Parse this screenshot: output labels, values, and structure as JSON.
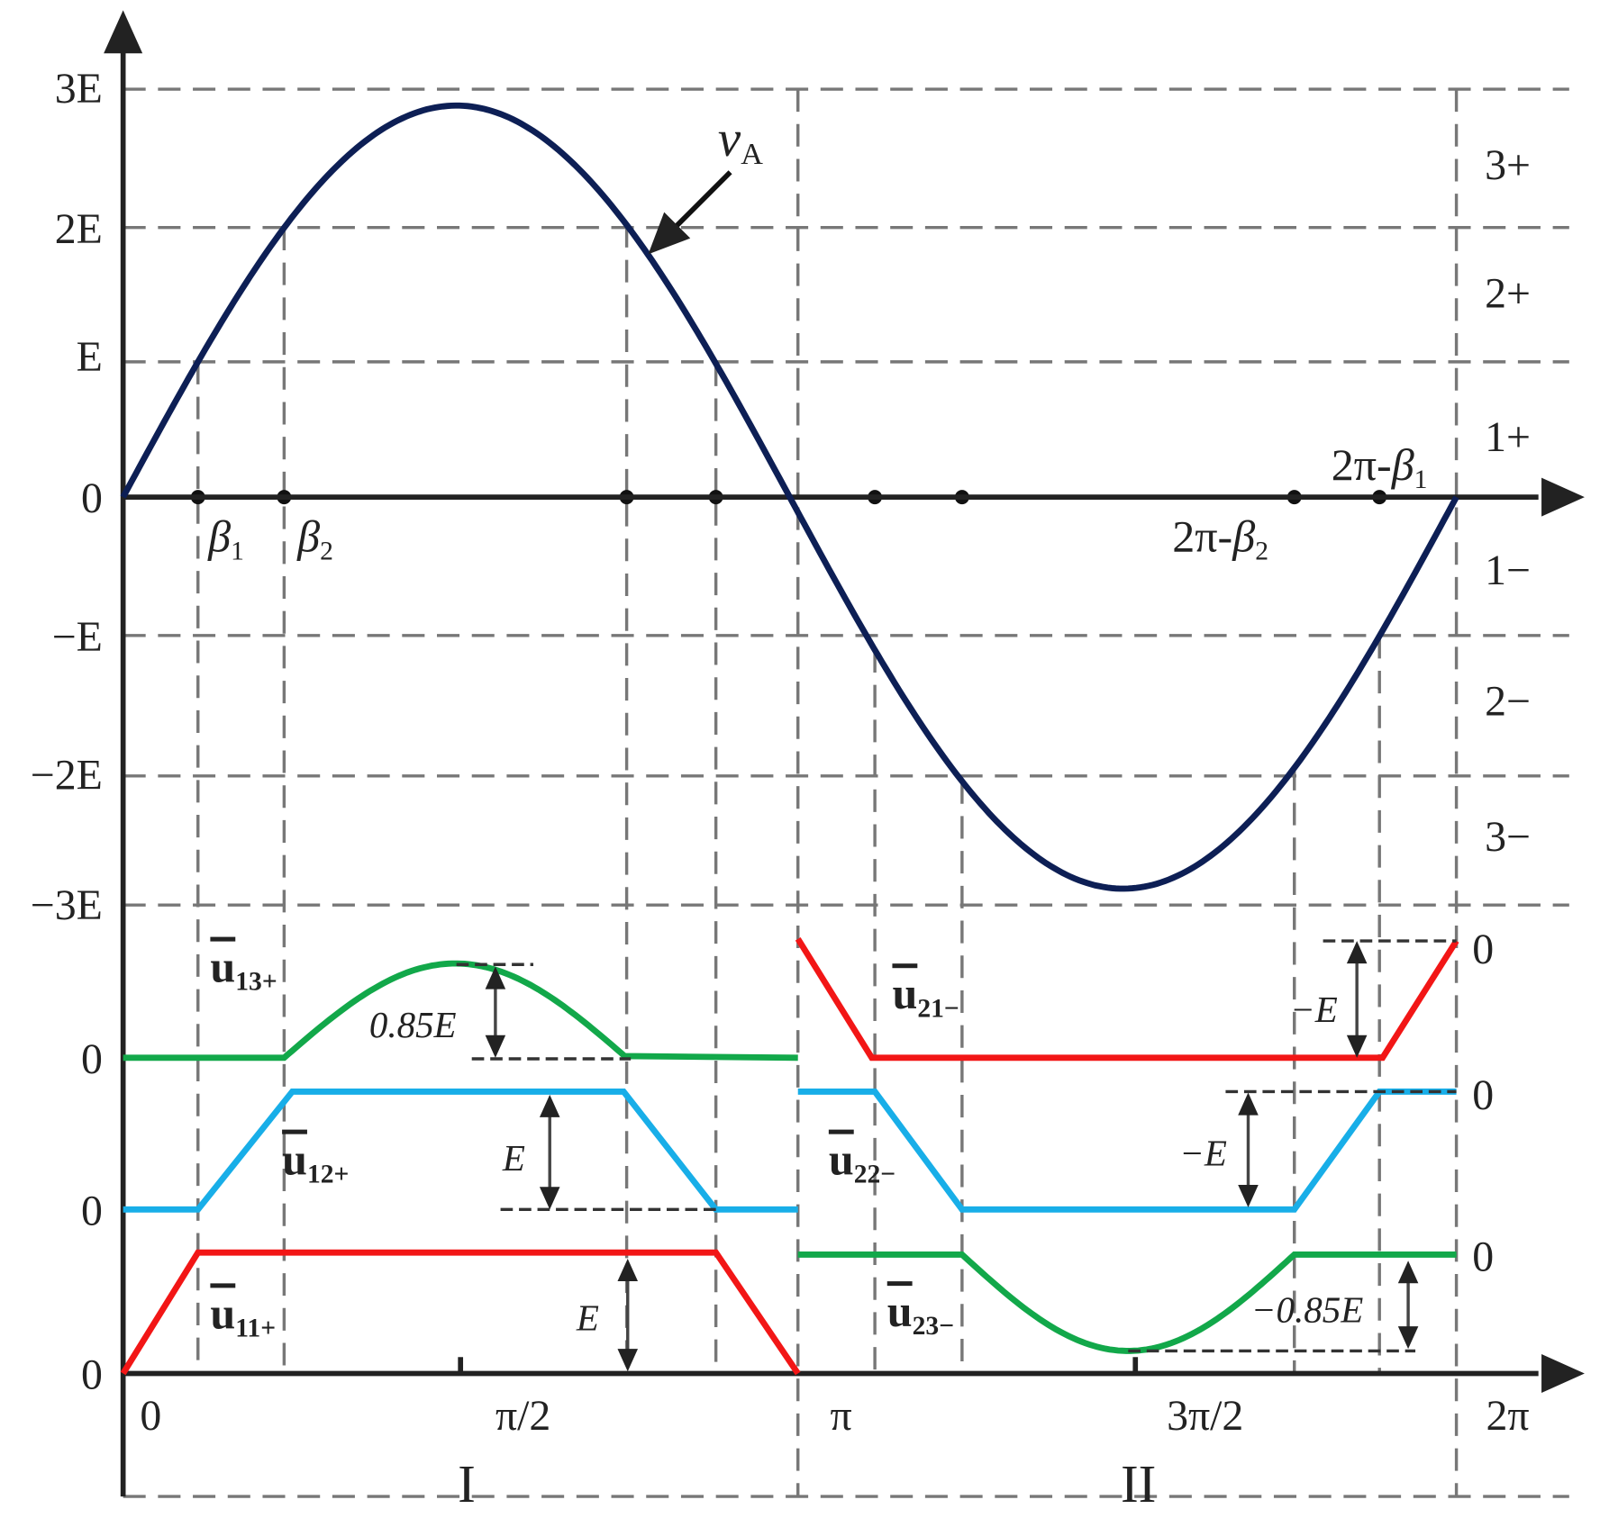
{
  "y_axis_labels": [
    "3E",
    "2E",
    "E",
    "0",
    "−E",
    "−2E",
    "−3E"
  ],
  "level_labels": [
    "3+",
    "2+",
    "1+",
    "1−",
    "2−",
    "3−"
  ],
  "angle_labels": [
    {
      "prefix": "",
      "symbol": "β",
      "sub": "1"
    },
    {
      "prefix": "",
      "symbol": "β",
      "sub": "2"
    },
    {
      "prefix": "2π-",
      "symbol": "β",
      "sub": "2"
    },
    {
      "prefix": "2π-",
      "symbol": "β",
      "sub": "1"
    }
  ],
  "curve_label": {
    "symbol": "v",
    "sub": "A"
  },
  "waveforms": [
    {
      "symbol": "u",
      "sub": "13+"
    },
    {
      "symbol": "u",
      "sub": "12+"
    },
    {
      "symbol": "u",
      "sub": "11+"
    },
    {
      "symbol": "u",
      "sub": "21−"
    },
    {
      "symbol": "u",
      "sub": "22−"
    },
    {
      "symbol": "u",
      "sub": "23−"
    }
  ],
  "zero_labels_left": [
    "0",
    "0",
    "0"
  ],
  "zero_labels_right": [
    "0",
    "0",
    "0"
  ],
  "amplitude_labels": [
    "0.85E",
    "E",
    "E",
    "−E",
    "−E",
    "−0.85E"
  ],
  "x_axis_labels": [
    "0",
    "π/2",
    "π",
    "3π/2",
    "2π"
  ],
  "regions": [
    "I",
    "II"
  ]
}
